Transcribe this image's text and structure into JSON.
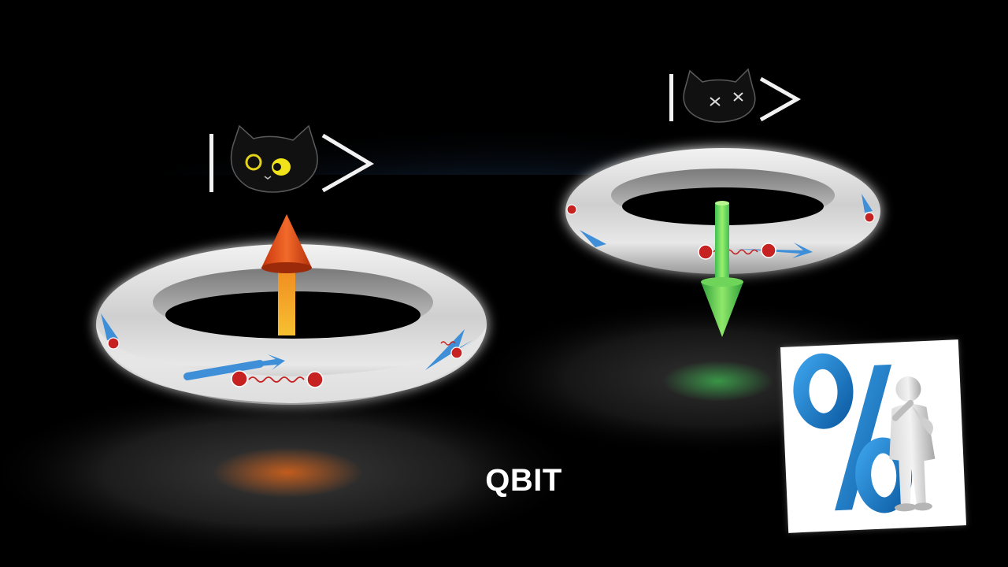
{
  "slide": {
    "caption": "QBIT"
  },
  "colors": {
    "background": "#000000",
    "upper_glow": "#2c4f7c",
    "ring": "#d8d8d8",
    "flow_arrows": "#3f8fd8",
    "spin_up_arrow": "#f0641e",
    "spin_down_arrow": "#4fd44a",
    "caption": "#ffffff",
    "percent_glyph": "#1f7fc9"
  },
  "icons": {
    "left_state": "alive-cat-ket-icon",
    "right_state": "dead-cat-ket-icon",
    "spin_up": "spin-up-arrow-icon",
    "spin_down": "spin-down-arrow-icon",
    "card": "percent-thinker-icon"
  }
}
